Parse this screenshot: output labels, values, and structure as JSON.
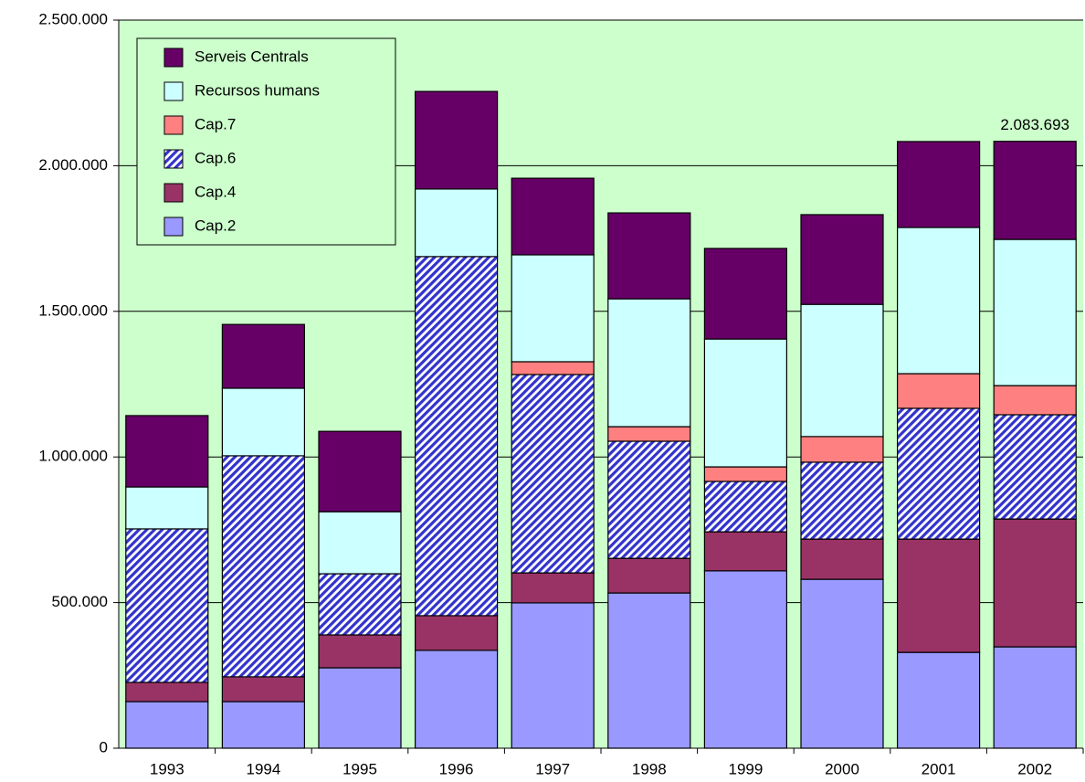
{
  "chart_data": {
    "type": "stacked_bar",
    "categories": [
      "1993",
      "1994",
      "1995",
      "1996",
      "1997",
      "1998",
      "1999",
      "2000",
      "2001",
      "2002"
    ],
    "series": [
      {
        "name": "Cap.2",
        "color": "#9999ff",
        "values": [
          160000,
          160000,
          276000,
          336000,
          499000,
          533000,
          609000,
          580000,
          329000,
          348000
        ]
      },
      {
        "name": "Cap.4",
        "color": "#993366",
        "values": [
          66000,
          85000,
          113000,
          119000,
          103000,
          119000,
          134000,
          138000,
          389000,
          439000
        ]
      },
      {
        "name": "Cap.6",
        "color": "#3333cc",
        "pattern": "hatch",
        "values": [
          527000,
          759000,
          210000,
          1233000,
          681000,
          402000,
          173000,
          264000,
          449000,
          358000
        ]
      },
      {
        "name": "Cap.7",
        "color": "#ff8080",
        "values": [
          0,
          0,
          0,
          0,
          44000,
          50000,
          50000,
          88000,
          119000,
          100000
        ]
      },
      {
        "name": "Recursos humans",
        "color": "#ccffff",
        "values": [
          144000,
          232000,
          213000,
          232000,
          367000,
          439000,
          439000,
          454000,
          502000,
          502000
        ]
      },
      {
        "name": "Serveis Centrals",
        "color": "#660066",
        "values": [
          245000,
          219000,
          276000,
          335000,
          263000,
          295000,
          311000,
          308000,
          295000,
          336693
        ]
      }
    ],
    "annotations": [
      {
        "x": "2002",
        "value": 2083693,
        "label": "2.083.693"
      }
    ],
    "ylim": [
      0,
      2500000
    ],
    "yticks": [
      0,
      {
        "value": 500000,
        "label": "500.000"
      },
      {
        "value": 1000000,
        "label": "1.000.000"
      },
      {
        "value": 1500000,
        "label": "1.500.000"
      },
      {
        "value": 2000000,
        "label": "2.000.000"
      },
      {
        "value": 2500000,
        "label": "2.500.000"
      }
    ],
    "grid": true,
    "plot_background": "#ccffcc",
    "legend": "upper left"
  }
}
